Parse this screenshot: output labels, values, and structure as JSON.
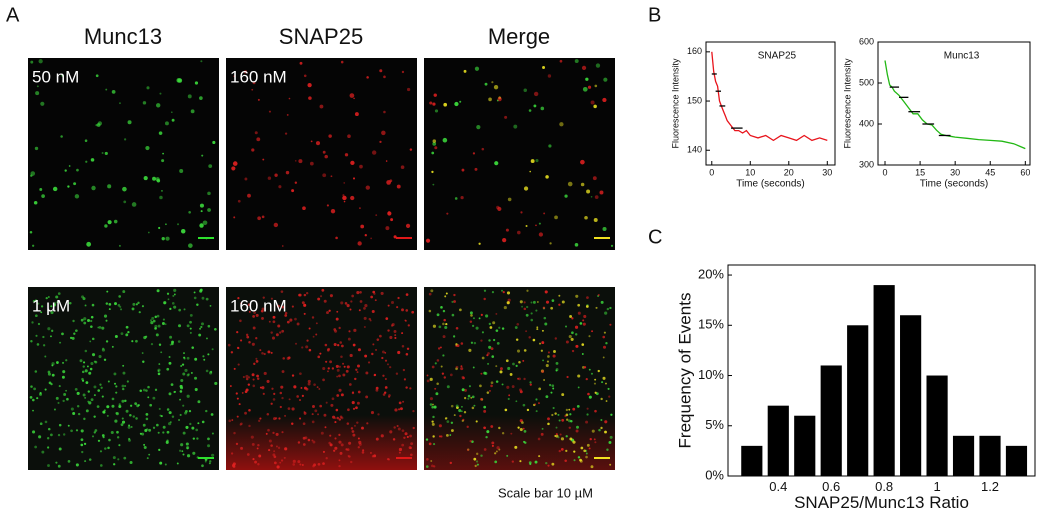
{
  "panel_labels": [
    "A",
    "B",
    "C"
  ],
  "microscopy": {
    "columns": [
      "Munc13",
      "SNAP25",
      "Merge"
    ],
    "rows": [
      [
        "50 nM",
        "160 nM"
      ],
      [
        "1 µM",
        "160 nM"
      ]
    ],
    "scale_note": "Scale bar 10 µM"
  },
  "chart_data": [
    {
      "type": "line",
      "title": "SNAP25",
      "x_label": "Time (seconds)",
      "y_label": "Fluorescence Intensity",
      "color": "#e8141c",
      "x": [
        0,
        0.5,
        1,
        1.5,
        2,
        2.5,
        3,
        3.5,
        4,
        5,
        6,
        7,
        8,
        9,
        10,
        12,
        14,
        16,
        18,
        20,
        22,
        24,
        26,
        28,
        30
      ],
      "values": [
        160,
        156,
        154,
        153,
        150,
        149,
        148,
        147,
        146,
        145,
        144,
        144,
        143.5,
        144,
        143,
        142.5,
        143,
        142,
        143,
        142.5,
        142,
        143,
        142,
        142.5,
        142
      ],
      "steps": [
        {
          "x": [
            0,
            1.3
          ],
          "y": 155.5
        },
        {
          "x": [
            1,
            2.4
          ],
          "y": 152
        },
        {
          "x": [
            2,
            3.5
          ],
          "y": 149
        },
        {
          "x": [
            5,
            8
          ],
          "y": 144.5
        }
      ],
      "xlim": [
        -1.5,
        32
      ],
      "xticks": [
        0,
        10,
        20,
        30
      ],
      "ylim": [
        137,
        162
      ],
      "yticks": [
        140,
        150,
        160
      ]
    },
    {
      "type": "line",
      "title": "Munc13",
      "x_label": "Time (seconds)",
      "y_label": "Fluorescence Intensity",
      "color": "#22b814",
      "x": [
        0,
        1,
        2,
        3,
        4,
        6,
        8,
        10,
        12,
        14,
        16,
        18,
        20,
        22,
        24,
        26,
        28,
        30,
        35,
        40,
        45,
        50,
        55,
        58,
        60
      ],
      "values": [
        555,
        520,
        495,
        490,
        480,
        470,
        455,
        440,
        425,
        425,
        410,
        400,
        398,
        385,
        375,
        372,
        370,
        368,
        365,
        362,
        360,
        358,
        352,
        345,
        340
      ],
      "steps": [
        {
          "x": [
            2,
            6
          ],
          "y": 490
        },
        {
          "x": [
            6,
            10
          ],
          "y": 465
        },
        {
          "x": [
            10,
            15
          ],
          "y": 430
        },
        {
          "x": [
            16,
            21
          ],
          "y": 400
        },
        {
          "x": [
            23,
            28
          ],
          "y": 372
        }
      ],
      "xlim": [
        -3,
        62
      ],
      "xticks": [
        0,
        15,
        30,
        45,
        60
      ],
      "ylim": [
        300,
        600
      ],
      "yticks": [
        300,
        400,
        500,
        600
      ]
    },
    {
      "type": "histogram",
      "x_label": "SNAP25/Munc13 Ratio",
      "y_label": "Frequency of Events",
      "color": "#000000",
      "bins": [
        0.25,
        0.35,
        0.45,
        0.55,
        0.65,
        0.75,
        0.85,
        0.95,
        1.05,
        1.15,
        1.25,
        1.35
      ],
      "values": [
        3,
        7,
        6,
        11,
        15,
        19,
        16,
        10,
        4,
        4,
        3
      ],
      "xlim": [
        0.21,
        1.37
      ],
      "xticks": [
        0.4,
        0.6,
        0.8,
        1.0,
        1.2
      ],
      "ylim": [
        0,
        21
      ],
      "yticks": [
        {
          "value": 0,
          "label": "0%"
        },
        {
          "value": 5,
          "label": "5%"
        },
        {
          "value": 10,
          "label": "10%"
        },
        {
          "value": 15,
          "label": "15%"
        },
        {
          "value": 20,
          "label": "20%"
        }
      ]
    }
  ]
}
